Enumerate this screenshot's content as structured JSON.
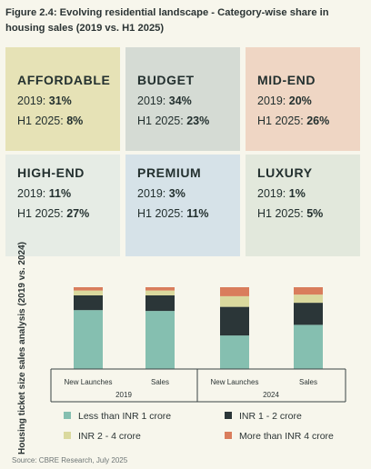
{
  "title": "Figure 2.4: Evolving residential landscape - Category-wise share in housing sales (2019 vs. H1 2025)",
  "cards": [
    {
      "category": "AFFORDABLE",
      "y2019_label": "2019:",
      "y2019_value": "31%",
      "h1_label": "H1 2025:",
      "h1_value": "8%"
    },
    {
      "category": "BUDGET",
      "y2019_label": "2019:",
      "y2019_value": "34%",
      "h1_label": "H1 2025:",
      "h1_value": "23%"
    },
    {
      "category": "MID-END",
      "y2019_label": "2019:",
      "y2019_value": "20%",
      "h1_label": "H1 2025:",
      "h1_value": "26%"
    },
    {
      "category": "HIGH-END",
      "y2019_label": "2019:",
      "y2019_value": "11%",
      "h1_label": "H1 2025:",
      "h1_value": "27%"
    },
    {
      "category": "PREMIUM",
      "y2019_label": "2019:",
      "y2019_value": "3%",
      "h1_label": "H1 2025:",
      "h1_value": "11%"
    },
    {
      "category": "LUXURY",
      "y2019_label": "2019:",
      "y2019_value": "1%",
      "h1_label": "H1 2025:",
      "h1_value": "5%"
    }
  ],
  "chart_data": {
    "type": "bar",
    "stacked": true,
    "ylabel": "Housing ticket size sales analysis (2019 vs. 2024)",
    "ylim": [
      0,
      100
    ],
    "categories": [
      "New Launches",
      "Sales",
      "New Launches",
      "Sales"
    ],
    "groups": [
      "2019",
      "2024"
    ],
    "series": [
      {
        "name": "Less than INR 1 crore",
        "color": "#85bfb0",
        "values": [
          72,
          71,
          41,
          54
        ]
      },
      {
        "name": "INR 1 - 2 crore",
        "color": "#2b3638",
        "values": [
          18,
          19,
          35,
          27
        ]
      },
      {
        "name": "INR 2 - 4 crore",
        "color": "#dad99e",
        "values": [
          6,
          6,
          13,
          10
        ]
      },
      {
        "name": "More than INR 4 crore",
        "color": "#d97d5c",
        "values": [
          4,
          4,
          11,
          9
        ]
      }
    ],
    "grid": false,
    "legend_position": "bottom"
  },
  "source": "Source: CBRE Research, July 2025"
}
